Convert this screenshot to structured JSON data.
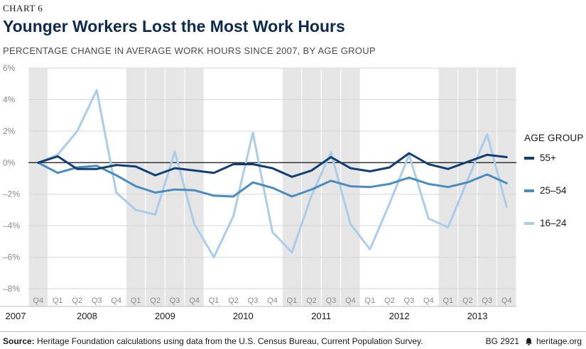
{
  "header": {
    "chart_number": "CHART 6",
    "title": "Younger Workers Lost the Most Work Hours",
    "subtitle": "PERCENTAGE CHANGE IN AVERAGE WORK HOURS SINCE 2007, BY AGE GROUP"
  },
  "legend": {
    "title": "AGE GROUP"
  },
  "footer": {
    "source_label": "Source:",
    "source_text": "Heritage Foundation calculations using data from the U.S. Census Bureau, Current Population Survey.",
    "report_id": "BG 2921",
    "site": "heritage.org"
  },
  "colors": {
    "series_55plus": "#123f73",
    "series_25_54": "#4a8cbe",
    "series_16_24": "#a9cdea",
    "band_shade": "#e6e6e6",
    "title": "#0d2a4f"
  },
  "chart_data": {
    "type": "line",
    "title": "Younger Workers Lost the Most Work Hours",
    "subtitle": "PERCENTAGE CHANGE IN AVERAGE WORK HOURS SINCE 2007, BY AGE GROUP",
    "ylim": [
      -8,
      6
    ],
    "y_ticks": [
      "6%",
      "4%",
      "2%",
      "0%",
      "–2%",
      "–4%",
      "–6%",
      "–8%"
    ],
    "y_tick_values": [
      6,
      4,
      2,
      0,
      -2,
      -4,
      -6,
      -8
    ],
    "quarters": [
      "Q4",
      "Q1",
      "Q2",
      "Q3",
      "Q4",
      "Q1",
      "Q2",
      "Q3",
      "Q4",
      "Q1",
      "Q2",
      "Q3",
      "Q4",
      "Q1",
      "Q2",
      "Q3",
      "Q4",
      "Q1",
      "Q2",
      "Q3",
      "Q4",
      "Q1",
      "Q2",
      "Q3",
      "Q4"
    ],
    "years": [
      "2007",
      "2008",
      "2009",
      "2010",
      "2011",
      "2012",
      "2013"
    ],
    "grid": true,
    "legend_position": "right",
    "series": [
      {
        "name": "55+",
        "values": [
          0.0,
          0.4,
          -0.4,
          -0.4,
          -0.15,
          -0.25,
          -0.8,
          -0.35,
          -0.5,
          -0.65,
          -0.1,
          -0.1,
          -0.35,
          -0.9,
          -0.5,
          0.35,
          -0.35,
          -0.55,
          -0.3,
          0.6,
          -0.1,
          -0.4,
          0.05,
          0.5,
          0.35
        ]
      },
      {
        "name": "25–54",
        "values": [
          0.0,
          -0.65,
          -0.3,
          -0.2,
          -0.8,
          -1.5,
          -1.9,
          -1.7,
          -1.75,
          -2.1,
          -2.15,
          -1.25,
          -1.6,
          -2.15,
          -1.7,
          -1.15,
          -1.5,
          -1.55,
          -1.35,
          -0.95,
          -1.35,
          -1.55,
          -1.25,
          -0.75,
          -1.3
        ]
      },
      {
        "name": "16–24",
        "values": [
          0.0,
          0.5,
          2.0,
          4.6,
          -1.9,
          -3.0,
          -3.3,
          0.7,
          -3.9,
          -6.0,
          -3.4,
          1.9,
          -4.4,
          -5.7,
          -2.1,
          0.65,
          -3.9,
          -5.5,
          -2.6,
          0.5,
          -3.55,
          -4.1,
          -1.1,
          1.8,
          -2.8
        ]
      }
    ]
  }
}
